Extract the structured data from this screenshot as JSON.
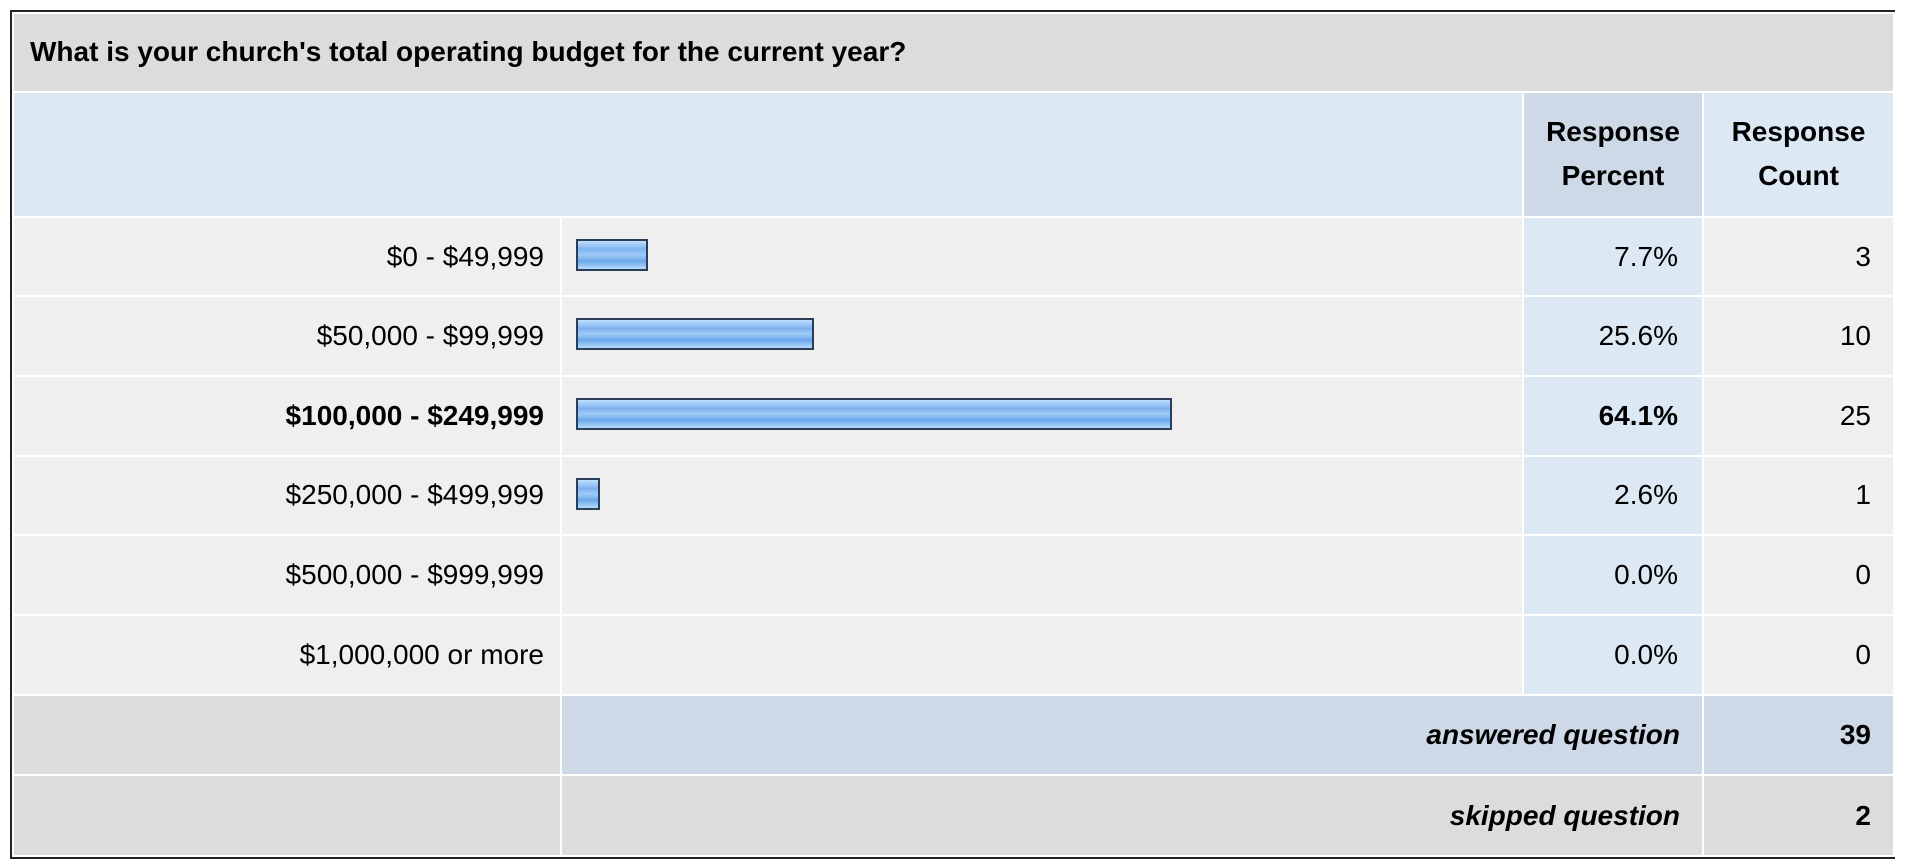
{
  "question": "What is your church's total operating budget for the current year?",
  "headers": {
    "percent_line1": "Response",
    "percent_line2": "Percent",
    "count_line1": "Response",
    "count_line2": "Count"
  },
  "chart_data": {
    "type": "bar",
    "orientation": "horizontal",
    "categories": [
      "$0 - $49,999",
      "$50,000 - $99,999",
      "$100,000 - $249,999",
      "$250,000 - $499,999",
      "$500,000 - $999,999",
      "$1,000,000 or more"
    ],
    "values": [
      7.7,
      25.6,
      64.1,
      2.6,
      0.0,
      0.0
    ],
    "percent_labels": [
      "7.7%",
      "25.6%",
      "64.1%",
      "2.6%",
      "0.0%",
      "0.0%"
    ],
    "counts": [
      "3",
      "10",
      "25",
      "1",
      "0",
      "0"
    ],
    "highlight_index": 2,
    "xlim": [
      0,
      100
    ],
    "bar_colors": {
      "fill": "#8fc3f4",
      "border": "#2c3f5a"
    }
  },
  "footer": {
    "answered_label": "answered question",
    "answered_value": "39",
    "skipped_label": "skipped question",
    "skipped_value": "2"
  }
}
